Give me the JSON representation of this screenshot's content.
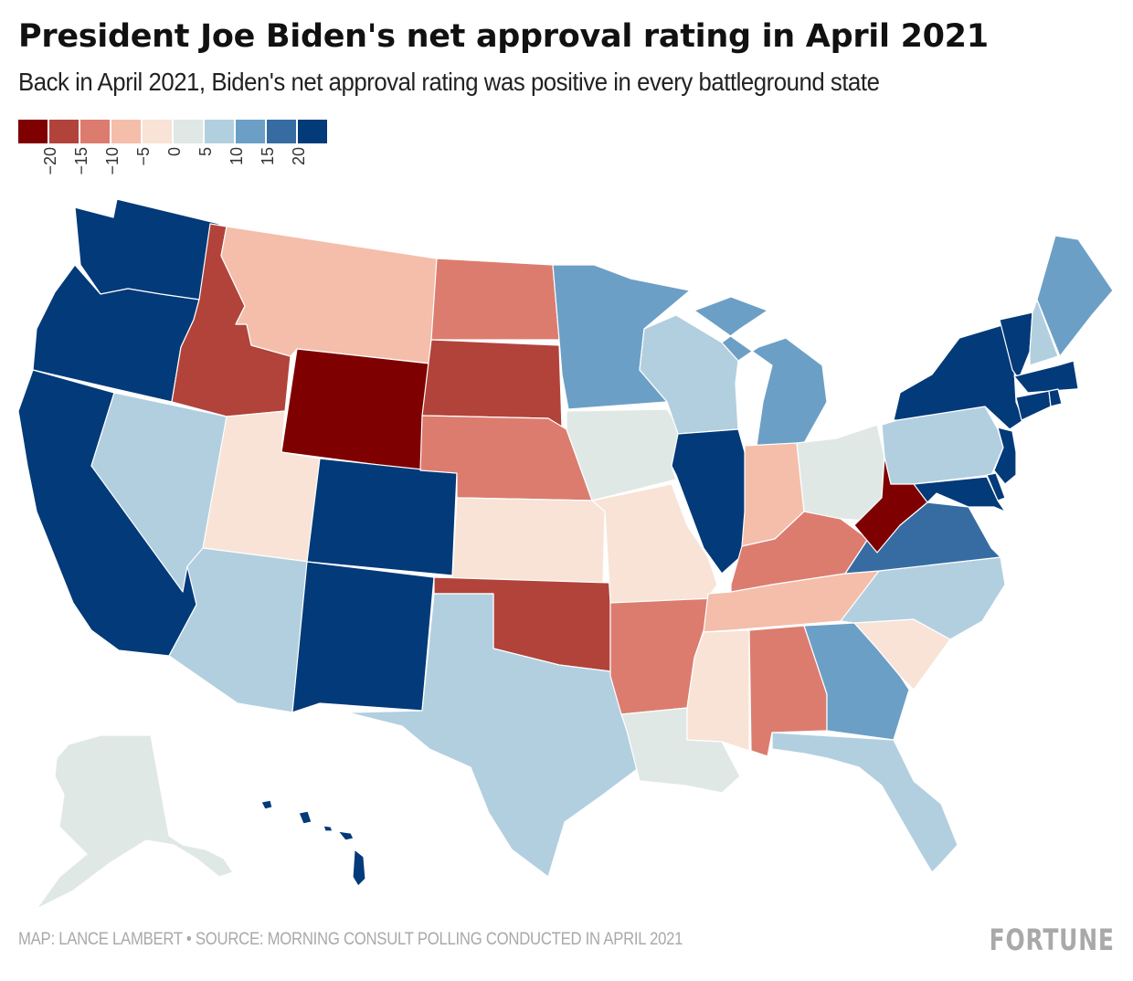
{
  "header": {
    "title": "President Joe Biden's net approval rating in April 2021",
    "subtitle": "Back in April 2021, Biden's net approval rating was positive in every battleground state"
  },
  "legend": {
    "colors": [
      "#7f0000",
      "#b2433a",
      "#dc7c6f",
      "#f4beaa",
      "#f8e3d6",
      "#e0e8e6",
      "#b2cfe0",
      "#6c9fc5",
      "#366ca2",
      "#033a79"
    ],
    "ticks": [
      "−20",
      "−15",
      "−10",
      "−5",
      "0",
      "5",
      "10",
      "15",
      "20"
    ]
  },
  "footer": {
    "source": "MAP: LANCE LAMBERT • SOURCE: MORNING CONSULT POLLING CONDUCTED IN APRIL 2021",
    "logo": "FORTUNE"
  },
  "chart_data": {
    "type": "choropleth",
    "title": "President Joe Biden's net approval rating in April 2021",
    "subtitle": "Back in April 2021, Biden's net approval rating was positive in every battleground state",
    "legend_breaks": [
      -20,
      -15,
      -10,
      -5,
      0,
      5,
      10,
      15,
      20
    ],
    "legend_placement": "top-left",
    "states": {
      "WA": {
        "bin": 9
      },
      "OR": {
        "bin": 9
      },
      "CA": {
        "bin": 9
      },
      "NV": {
        "bin": 6
      },
      "ID": {
        "bin": 1
      },
      "MT": {
        "bin": 3
      },
      "WY": {
        "bin": 0
      },
      "UT": {
        "bin": 4
      },
      "AZ": {
        "bin": 6
      },
      "CO": {
        "bin": 9
      },
      "NM": {
        "bin": 9
      },
      "ND": {
        "bin": 2
      },
      "SD": {
        "bin": 1
      },
      "NE": {
        "bin": 2
      },
      "KS": {
        "bin": 4
      },
      "OK": {
        "bin": 1
      },
      "TX": {
        "bin": 6
      },
      "MN": {
        "bin": 7
      },
      "IA": {
        "bin": 5
      },
      "MO": {
        "bin": 4
      },
      "AR": {
        "bin": 2
      },
      "LA": {
        "bin": 5
      },
      "WI": {
        "bin": 6
      },
      "IL": {
        "bin": 9
      },
      "MI": {
        "bin": 7
      },
      "IN": {
        "bin": 3
      },
      "OH": {
        "bin": 5
      },
      "KY": {
        "bin": 2
      },
      "TN": {
        "bin": 3
      },
      "MS": {
        "bin": 4
      },
      "AL": {
        "bin": 2
      },
      "GA": {
        "bin": 7
      },
      "FL": {
        "bin": 6
      },
      "SC": {
        "bin": 4
      },
      "NC": {
        "bin": 6
      },
      "VA": {
        "bin": 8
      },
      "WV": {
        "bin": 0
      },
      "PA": {
        "bin": 6
      },
      "NY": {
        "bin": 9
      },
      "VT": {
        "bin": 9
      },
      "NH": {
        "bin": 6
      },
      "ME": {
        "bin": 7
      },
      "MA": {
        "bin": 9
      },
      "RI": {
        "bin": 9
      },
      "CT": {
        "bin": 9
      },
      "NJ": {
        "bin": 9
      },
      "DE": {
        "bin": 9
      },
      "MD": {
        "bin": 9
      },
      "AK": {
        "bin": 5
      },
      "HI": {
        "bin": 9
      }
    }
  }
}
